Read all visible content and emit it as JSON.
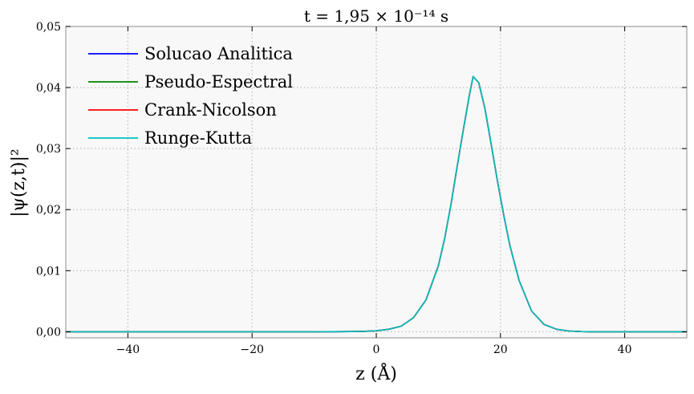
{
  "chart_data": {
    "type": "line",
    "title": "t = 1,95 × 10⁻¹⁴ s",
    "xlabel": "z (Å)",
    "ylabel": "|ψ(z,t)|²",
    "xlim": [
      -50,
      50
    ],
    "ylim": [
      -0.001,
      0.05
    ],
    "xticks": [
      -40,
      -20,
      0,
      20,
      40
    ],
    "xtick_labels": [
      "−40",
      "−20",
      "0",
      "20",
      "40"
    ],
    "yticks": [
      0.0,
      0.01,
      0.02,
      0.03,
      0.04,
      0.05
    ],
    "ytick_labels": [
      "0,00",
      "0,01",
      "0,02",
      "0,03",
      "0,04",
      "0,05"
    ],
    "grid": true,
    "legend_position": "top-left",
    "x": [
      -50,
      -40,
      -30,
      -20,
      -10,
      -4,
      -2,
      0,
      2,
      4,
      6,
      8,
      10,
      11,
      12,
      13,
      14,
      15,
      15.6,
      16.5,
      17.5,
      18.5,
      19.5,
      20.5,
      21.5,
      23,
      25,
      27,
      29,
      31,
      33,
      35,
      40,
      50
    ],
    "series": [
      {
        "name": "Solucao Analitica",
        "color": "#0000ff",
        "values": [
          0,
          0,
          0,
          0,
          0,
          2e-05,
          6e-05,
          0.00016,
          0.0004,
          0.0009,
          0.0023,
          0.0052,
          0.0108,
          0.0152,
          0.0207,
          0.0269,
          0.033,
          0.0388,
          0.0418,
          0.0408,
          0.0365,
          0.0307,
          0.0248,
          0.0192,
          0.0142,
          0.0084,
          0.0034,
          0.0012,
          0.0004,
          0.00012,
          3e-05,
          0,
          0,
          0
        ]
      },
      {
        "name": "Pseudo-Espectral",
        "color": "#008000",
        "values": [
          0,
          0,
          0,
          0,
          0,
          2e-05,
          6e-05,
          0.00016,
          0.0004,
          0.0009,
          0.0023,
          0.0052,
          0.0108,
          0.0152,
          0.0207,
          0.0269,
          0.033,
          0.0388,
          0.0418,
          0.0408,
          0.0365,
          0.0307,
          0.0248,
          0.0192,
          0.0142,
          0.0084,
          0.0034,
          0.0012,
          0.0004,
          0.00012,
          3e-05,
          0,
          0,
          0
        ]
      },
      {
        "name": "Crank-Nicolson",
        "color": "#ff0000",
        "values": [
          0,
          0,
          0,
          0,
          0,
          2e-05,
          6e-05,
          0.00016,
          0.0004,
          0.0009,
          0.0023,
          0.0052,
          0.0108,
          0.0152,
          0.0207,
          0.0269,
          0.033,
          0.0388,
          0.0418,
          0.0408,
          0.0365,
          0.0307,
          0.0248,
          0.0192,
          0.0142,
          0.0084,
          0.0034,
          0.0012,
          0.0004,
          0.00012,
          3e-05,
          0,
          0,
          0
        ]
      },
      {
        "name": "Runge-Kutta",
        "color": "#00bfbf",
        "values": [
          0,
          0,
          0,
          0,
          0,
          2e-05,
          6e-05,
          0.00016,
          0.0004,
          0.0009,
          0.0023,
          0.0052,
          0.0108,
          0.0152,
          0.0207,
          0.0269,
          0.033,
          0.0388,
          0.0418,
          0.0408,
          0.0365,
          0.0307,
          0.0248,
          0.0192,
          0.0142,
          0.0084,
          0.0034,
          0.0012,
          0.0004,
          0.00012,
          3e-05,
          0,
          0,
          0
        ]
      }
    ],
    "colors": {
      "plot_background": "#f8f8f8",
      "grid": "#b0b0b0",
      "frame": "#a0a0a0"
    }
  }
}
